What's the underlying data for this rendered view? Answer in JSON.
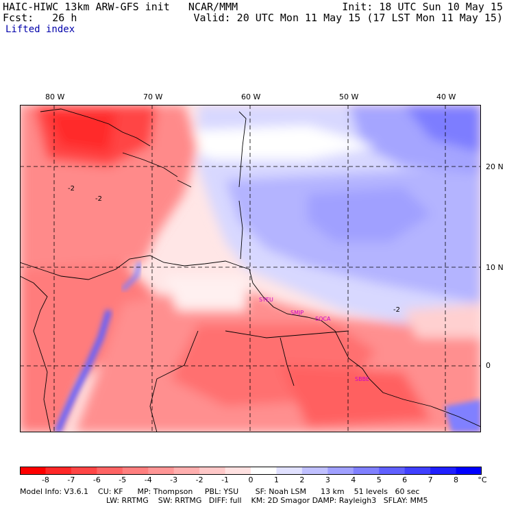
{
  "header": {
    "model_title": "HAIC-HIWC 13km ARW-GFS init   NCAR/MMM",
    "init": "Init: 18 UTC Sun 10 May 15",
    "fcst": "Fcst:   26 h",
    "valid": "Valid: 20 UTC Mon 11 May 15 (17 LST Mon 11 May 15)",
    "field": "Lifted index"
  },
  "map": {
    "lon_labels": [
      "80 W",
      "70 W",
      "60 W",
      "50 W",
      "40 W"
    ],
    "lat_labels": [
      "20 N",
      "10 N",
      "0"
    ],
    "contour_labels": [
      "-2",
      "-2",
      "-2"
    ],
    "stations": [
      "SYEU",
      "SMJP",
      "SOCA",
      "SBBE"
    ]
  },
  "colorbar": {
    "ticks": [
      "-8",
      "-7",
      "-6",
      "-5",
      "-4",
      "-3",
      "-2",
      "-1",
      "0",
      "1",
      "2",
      "3",
      "4",
      "5",
      "6",
      "7",
      "8"
    ],
    "unit": "°C",
    "colors": [
      "#ff0000",
      "#ff2828",
      "#ff4646",
      "#ff6464",
      "#ff7f7f",
      "#ff9696",
      "#ffafaf",
      "#ffc8c8",
      "#ffe1e1",
      "#ffffff",
      "#e1e1ff",
      "#c0c0ff",
      "#a0a0ff",
      "#8080ff",
      "#6060ff",
      "#4040ff",
      "#2020ff",
      "#0000ff"
    ]
  },
  "model_info": {
    "line1": "Model Info: V3.6.1    CU: KF      MP: Thompson     PBL: YSU       SF: Noah LSM      13 km    51 levels   60 sec",
    "line2": "LW: RRTMG    SW: RRTMG   DIFF: full    KM: 2D Smagor DAMP: Rayleigh3   SFLAY: MM5"
  }
}
